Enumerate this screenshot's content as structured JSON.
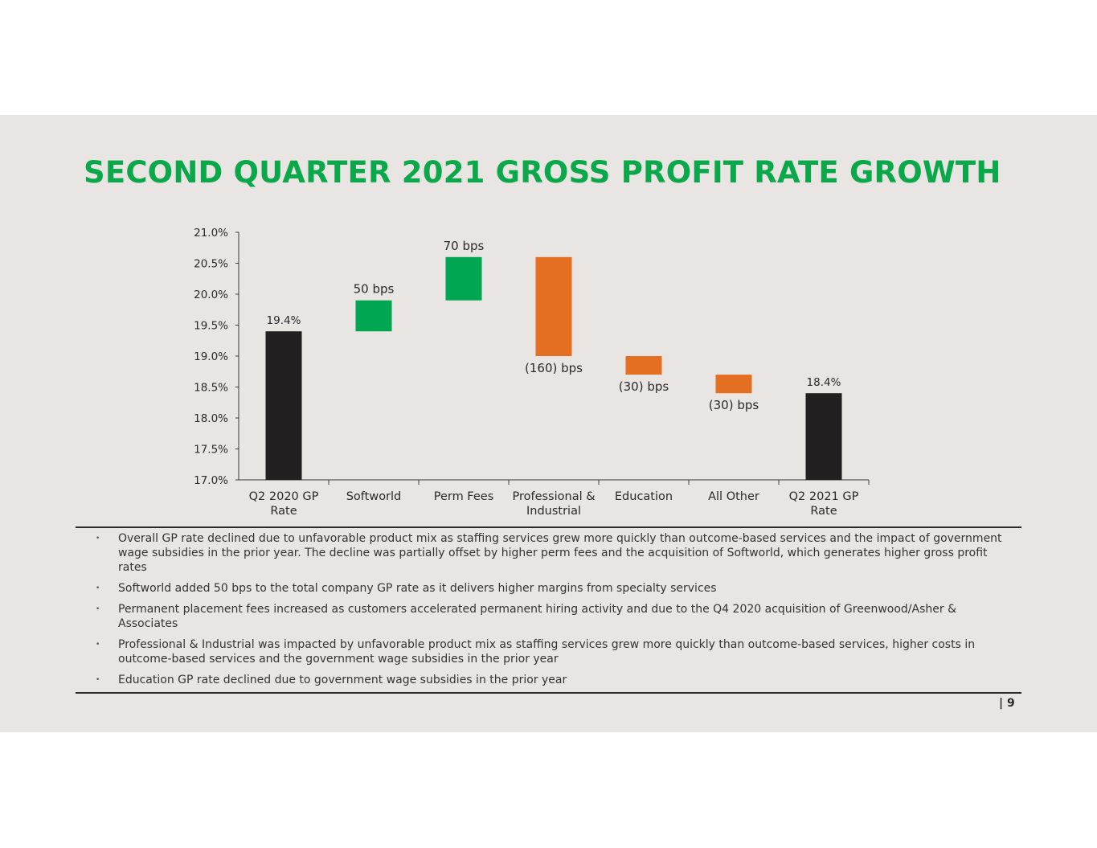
{
  "title": "SECOND QUARTER 2021 GROSS PROFIT RATE GROWTH",
  "colors": {
    "title": "#0aa84a",
    "total": "#231f20",
    "increase": "#00a651",
    "decrease": "#e46f22",
    "background": "#e9e5e2"
  },
  "chart_data": {
    "type": "bar",
    "subtype": "waterfall",
    "categories": [
      "Q2 2020 GP Rate",
      "Softworld",
      "Perm Fees",
      "Professional & Industrial",
      "Education",
      "All Other",
      "Q2 2021 GP Rate"
    ],
    "category_lines": [
      [
        "Q2 2020 GP",
        "Rate"
      ],
      [
        "Softworld"
      ],
      [
        "Perm Fees"
      ],
      [
        "Professional &",
        "Industrial"
      ],
      [
        "Education"
      ],
      [
        "All Other"
      ],
      [
        "Q2 2021 GP",
        "Rate"
      ]
    ],
    "bars": [
      {
        "kind": "total",
        "start": 17.0,
        "end": 19.4,
        "label": "19.4%"
      },
      {
        "kind": "increase",
        "start": 19.4,
        "end": 19.9,
        "label": "50 bps"
      },
      {
        "kind": "increase",
        "start": 19.9,
        "end": 20.6,
        "label": "70 bps"
      },
      {
        "kind": "decrease",
        "start": 20.6,
        "end": 19.0,
        "label": "(160) bps"
      },
      {
        "kind": "decrease",
        "start": 19.0,
        "end": 18.7,
        "label": "(30) bps"
      },
      {
        "kind": "decrease",
        "start": 18.7,
        "end": 18.4,
        "label": "(30) bps"
      },
      {
        "kind": "total",
        "start": 17.0,
        "end": 18.4,
        "label": "18.4%"
      }
    ],
    "y_ticks": [
      "17.0%",
      "17.5%",
      "18.0%",
      "18.5%",
      "19.0%",
      "19.5%",
      "20.0%",
      "20.5%",
      "21.0%"
    ],
    "ylim": [
      17.0,
      21.0
    ],
    "grid": false,
    "xlabel": "",
    "ylabel": ""
  },
  "bullets": [
    "Overall GP rate declined due to unfavorable product mix as staffing services grew more quickly than outcome-based services and the impact of government wage subsidies in the prior year.  The decline was partially offset by higher perm fees and the acquisition of Softworld, which generates higher gross profit rates",
    "Softworld added 50 bps to the total company GP rate as it delivers higher margins from specialty services",
    "Permanent placement fees increased as customers accelerated permanent hiring activity and due to the Q4 2020 acquisition of Greenwood/Asher & Associates",
    "Professional & Industrial was impacted by unfavorable product mix as staffing services grew more quickly than outcome-based services, higher costs in outcome-based services and the government wage subsidies in the prior year",
    "Education GP rate declined due to government wage subsidies in the prior year"
  ],
  "page_number": "| 9"
}
